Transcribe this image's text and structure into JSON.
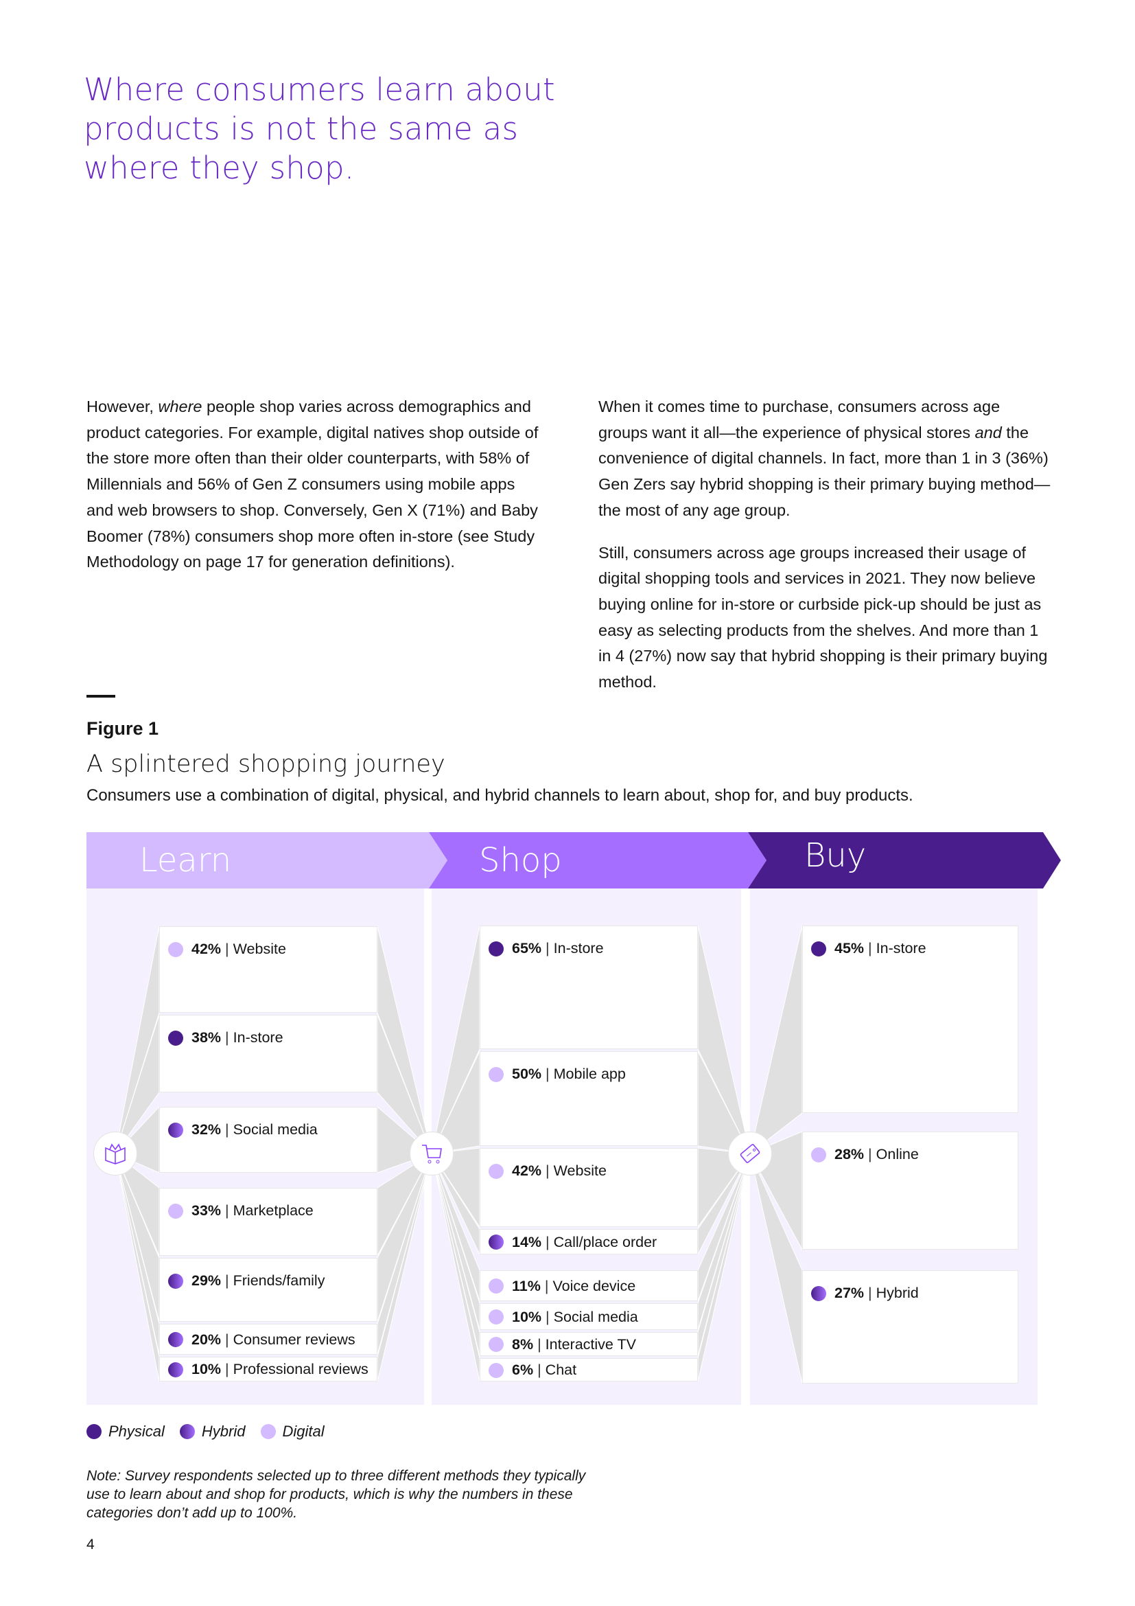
{
  "headline": [
    "Where consumers learn about",
    "products is not the same as",
    "where they shop."
  ],
  "body_left": [
    "However, where people shop varies across demographics and product categories. For example, digital natives shop outside of the store more often than their older counterparts, with 58% of Millennials and 56% of Gen Z consumers using mobile apps and web browsers to shop. Conversely, Gen X (71%) and Baby Boomer (78%) consumers shop more often in-store (see Study Methodology on page 17 for generation definitions)."
  ],
  "body_right": [
    "When it comes time to purchase, consumers across age groups want it all—the experience of physical stores and the convenience of digital channels. In fact, more than 1 in 3 (36%) Gen Zers say hybrid shopping is their primary buying method—the most of any age group.",
    "Still, consumers across age groups increased their usage of digital shopping tools and services in 2021. They now believe buying online for in-store or curbside pick-up should be just as easy as selecting products from the shelves. And more than 1 in 4 (27%) now say that hybrid shopping is their primary buying method."
  ],
  "figure": {
    "label": "Figure 1",
    "title": "A splintered shopping journey",
    "description": "Consumers use a combination of digital, physical, and hybrid channels to learn about, shop for, and buy products.",
    "colors": {
      "physical": "#491d8b",
      "hybrid": "#8a3ffc",
      "digital": "#d4bbff",
      "learn_banner": "#d4bbff",
      "shop_banner": "#a56eff",
      "buy_banner": "#491d8b",
      "panel": "#f4f0fd",
      "connector": "#e0e0e0"
    },
    "stages": [
      {
        "name": "Learn",
        "icon": "open-book-icon",
        "items": [
          {
            "pct": "42%",
            "label": "Website",
            "type": "digital"
          },
          {
            "pct": "38%",
            "label": "In-store",
            "type": "physical"
          },
          {
            "pct": "32%",
            "label": "Social media",
            "type": "hybrid"
          },
          {
            "pct": "33%",
            "label": "Marketplace",
            "type": "digital"
          },
          {
            "pct": "29%",
            "label": "Friends/family",
            "type": "hybrid"
          },
          {
            "pct": "20%",
            "label": "Consumer reviews",
            "type": "hybrid"
          },
          {
            "pct": "10%",
            "label": "Professional reviews",
            "type": "hybrid"
          }
        ]
      },
      {
        "name": "Shop",
        "icon": "shopping-cart-icon",
        "items": [
          {
            "pct": "65%",
            "label": "In-store",
            "type": "physical"
          },
          {
            "pct": "50%",
            "label": "Mobile app",
            "type": "digital"
          },
          {
            "pct": "42%",
            "label": "Website",
            "type": "digital"
          },
          {
            "pct": "14%",
            "label": "Call/place order",
            "type": "hybrid"
          },
          {
            "pct": "11%",
            "label": "Voice device",
            "type": "digital"
          },
          {
            "pct": "10%",
            "label": "Social media",
            "type": "digital"
          },
          {
            "pct": "8%",
            "label": "Interactive TV",
            "type": "digital"
          },
          {
            "pct": "6%",
            "label": "Chat",
            "type": "digital"
          }
        ]
      },
      {
        "name": "Buy",
        "icon": "price-tag-icon",
        "items": [
          {
            "pct": "45%",
            "label": "In-store",
            "type": "physical"
          },
          {
            "pct": "28%",
            "label": "Online",
            "type": "digital"
          },
          {
            "pct": "27%",
            "label": "Hybrid",
            "type": "hybrid"
          }
        ]
      }
    ],
    "legend": [
      {
        "label": "Physical",
        "type": "physical"
      },
      {
        "label": "Hybrid",
        "type": "hybrid"
      },
      {
        "label": "Digital",
        "type": "digital"
      }
    ],
    "note": "Note: Survey respondents selected up to three different methods they typically use to learn about and shop for products, which is why the numbers in these categories don’t add up to 100%."
  },
  "page_number": "4"
}
